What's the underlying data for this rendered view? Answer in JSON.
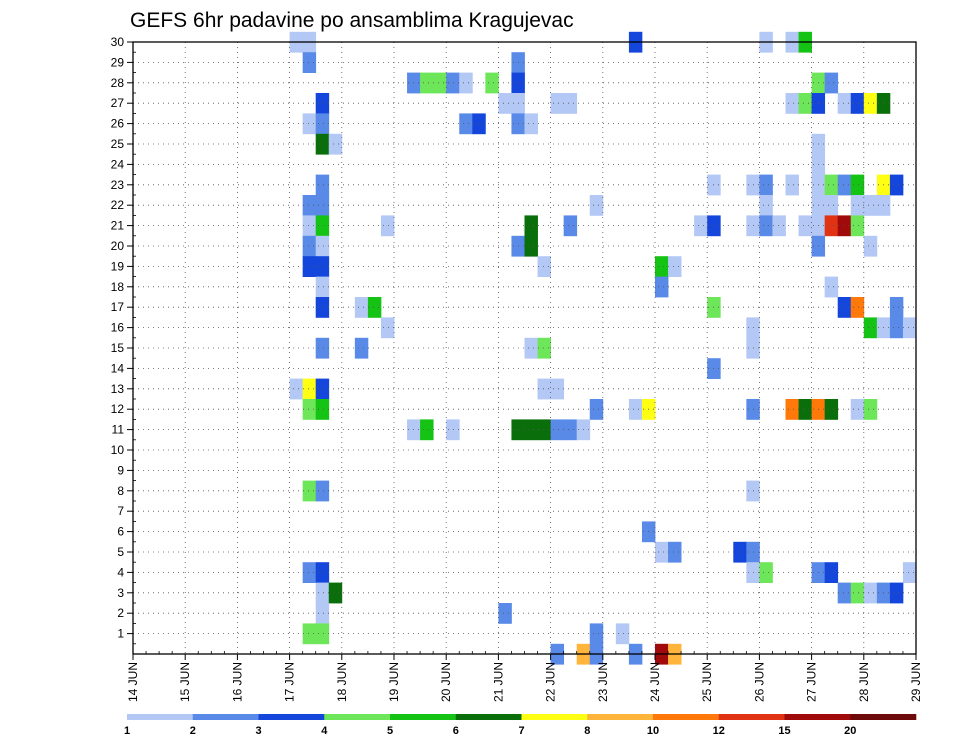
{
  "chart_data": {
    "type": "heatmap",
    "title": "GEFS 6hr padavine po ansamblima Kragujevac",
    "xlabel": "",
    "ylabel": "",
    "y_ticks": [
      "1",
      "2",
      "3",
      "4",
      "5",
      "6",
      "7",
      "8",
      "9",
      "10",
      "11",
      "12",
      "13",
      "14",
      "15",
      "16",
      "17",
      "18",
      "19",
      "20",
      "21",
      "22",
      "23",
      "24",
      "25",
      "26",
      "27",
      "28",
      "29",
      "30"
    ],
    "x_ticks": [
      "14 JUN",
      "15 JUN",
      "16 JUN",
      "17 JUN",
      "18 JUN",
      "19 JUN",
      "20 JUN",
      "21 JUN",
      "22 JUN",
      "23 JUN",
      "24 JUN",
      "25 JUN",
      "26 JUN",
      "27 JUN",
      "28 JUN",
      "29 JUN"
    ],
    "x_range_days": [
      14,
      29
    ],
    "y_range_members": [
      0,
      30
    ],
    "grid": true,
    "legend": {
      "placement": "bottom",
      "labels": [
        "1",
        "2",
        "3",
        "4",
        "5",
        "6",
        "7",
        "8",
        "10",
        "12",
        "15",
        "20"
      ],
      "colors": [
        "#b4c8f5",
        "#5a8ae8",
        "#1446dc",
        "#6ee65a",
        "#14c314",
        "#0a6e0a",
        "#ffff14",
        "#ffb43c",
        "#ff780a",
        "#e13214",
        "#a00a0a",
        "#6e0a0a"
      ]
    },
    "cells": [
      {
        "m": 30,
        "t": 17.0,
        "l": 1
      },
      {
        "m": 30,
        "t": 17.25,
        "l": 1
      },
      {
        "m": 30,
        "t": 23.5,
        "l": 3
      },
      {
        "m": 30,
        "t": 26.0,
        "l": 1
      },
      {
        "m": 30,
        "t": 26.5,
        "l": 1
      },
      {
        "m": 30,
        "t": 26.75,
        "l": 5
      },
      {
        "m": 29,
        "t": 17.25,
        "l": 2
      },
      {
        "m": 29,
        "t": 21.25,
        "l": 2
      },
      {
        "m": 28,
        "t": 19.25,
        "l": 2
      },
      {
        "m": 28,
        "t": 19.5,
        "l": 4
      },
      {
        "m": 28,
        "t": 19.75,
        "l": 4
      },
      {
        "m": 28,
        "t": 20.0,
        "l": 2
      },
      {
        "m": 28,
        "t": 20.25,
        "l": 1
      },
      {
        "m": 28,
        "t": 20.75,
        "l": 4
      },
      {
        "m": 28,
        "t": 21.25,
        "l": 3
      },
      {
        "m": 28,
        "t": 27.0,
        "l": 4
      },
      {
        "m": 28,
        "t": 27.25,
        "l": 2
      },
      {
        "m": 27,
        "t": 17.5,
        "l": 3
      },
      {
        "m": 27,
        "t": 21.0,
        "l": 1
      },
      {
        "m": 27,
        "t": 21.25,
        "l": 1
      },
      {
        "m": 27,
        "t": 22.0,
        "l": 1
      },
      {
        "m": 27,
        "t": 22.25,
        "l": 1
      },
      {
        "m": 27,
        "t": 26.5,
        "l": 1
      },
      {
        "m": 27,
        "t": 26.75,
        "l": 4
      },
      {
        "m": 27,
        "t": 27.0,
        "l": 3
      },
      {
        "m": 27,
        "t": 27.5,
        "l": 1
      },
      {
        "m": 27,
        "t": 27.75,
        "l": 3
      },
      {
        "m": 27,
        "t": 28.0,
        "l": 7
      },
      {
        "m": 27,
        "t": 28.25,
        "l": 6
      },
      {
        "m": 26,
        "t": 17.25,
        "l": 1
      },
      {
        "m": 26,
        "t": 17.5,
        "l": 2
      },
      {
        "m": 26,
        "t": 20.25,
        "l": 2
      },
      {
        "m": 26,
        "t": 20.5,
        "l": 3
      },
      {
        "m": 26,
        "t": 21.25,
        "l": 2
      },
      {
        "m": 26,
        "t": 21.5,
        "l": 1
      },
      {
        "m": 25,
        "t": 17.5,
        "l": 6
      },
      {
        "m": 25,
        "t": 17.75,
        "l": 1
      },
      {
        "m": 25,
        "t": 27.0,
        "l": 1
      },
      {
        "m": 24,
        "t": 27.0,
        "l": 1
      },
      {
        "m": 23,
        "t": 17.5,
        "l": 2
      },
      {
        "m": 23,
        "t": 25.0,
        "l": 1
      },
      {
        "m": 23,
        "t": 25.75,
        "l": 1
      },
      {
        "m": 23,
        "t": 26.0,
        "l": 2
      },
      {
        "m": 23,
        "t": 26.5,
        "l": 1
      },
      {
        "m": 23,
        "t": 27.0,
        "l": 1
      },
      {
        "m": 23,
        "t": 27.25,
        "l": 4
      },
      {
        "m": 23,
        "t": 27.5,
        "l": 2
      },
      {
        "m": 23,
        "t": 27.75,
        "l": 5
      },
      {
        "m": 23,
        "t": 28.25,
        "l": 7
      },
      {
        "m": 23,
        "t": 28.5,
        "l": 3
      },
      {
        "m": 22,
        "t": 17.25,
        "l": 2
      },
      {
        "m": 22,
        "t": 17.5,
        "l": 2
      },
      {
        "m": 22,
        "t": 22.75,
        "l": 1
      },
      {
        "m": 22,
        "t": 26.0,
        "l": 1
      },
      {
        "m": 22,
        "t": 27.0,
        "l": 1
      },
      {
        "m": 22,
        "t": 27.25,
        "l": 1
      },
      {
        "m": 22,
        "t": 27.75,
        "l": 1
      },
      {
        "m": 22,
        "t": 28.0,
        "l": 1
      },
      {
        "m": 22,
        "t": 28.25,
        "l": 1
      },
      {
        "m": 21,
        "t": 17.25,
        "l": 1
      },
      {
        "m": 21,
        "t": 17.5,
        "l": 5
      },
      {
        "m": 21,
        "t": 18.75,
        "l": 1
      },
      {
        "m": 21,
        "t": 21.5,
        "l": 6
      },
      {
        "m": 21,
        "t": 22.25,
        "l": 2
      },
      {
        "m": 21,
        "t": 24.75,
        "l": 1
      },
      {
        "m": 21,
        "t": 25.0,
        "l": 3
      },
      {
        "m": 21,
        "t": 25.75,
        "l": 1
      },
      {
        "m": 21,
        "t": 26.0,
        "l": 2
      },
      {
        "m": 21,
        "t": 26.25,
        "l": 1
      },
      {
        "m": 21,
        "t": 26.75,
        "l": 1
      },
      {
        "m": 21,
        "t": 27.0,
        "l": 1
      },
      {
        "m": 21,
        "t": 27.25,
        "l": 10
      },
      {
        "m": 21,
        "t": 27.5,
        "l": 11
      },
      {
        "m": 21,
        "t": 27.75,
        "l": 4
      },
      {
        "m": 20,
        "t": 17.25,
        "l": 2
      },
      {
        "m": 20,
        "t": 17.5,
        "l": 1
      },
      {
        "m": 20,
        "t": 21.25,
        "l": 2
      },
      {
        "m": 20,
        "t": 21.5,
        "l": 6
      },
      {
        "m": 20,
        "t": 27.0,
        "l": 2
      },
      {
        "m": 20,
        "t": 28.0,
        "l": 1
      },
      {
        "m": 19,
        "t": 17.25,
        "l": 3
      },
      {
        "m": 19,
        "t": 17.5,
        "l": 3
      },
      {
        "m": 19,
        "t": 21.75,
        "l": 1
      },
      {
        "m": 19,
        "t": 24.0,
        "l": 5
      },
      {
        "m": 19,
        "t": 24.25,
        "l": 1
      },
      {
        "m": 18,
        "t": 17.5,
        "l": 1
      },
      {
        "m": 18,
        "t": 24.0,
        "l": 2
      },
      {
        "m": 18,
        "t": 27.25,
        "l": 1
      },
      {
        "m": 17,
        "t": 17.5,
        "l": 3
      },
      {
        "m": 17,
        "t": 18.25,
        "l": 1
      },
      {
        "m": 17,
        "t": 18.5,
        "l": 5
      },
      {
        "m": 17,
        "t": 25.0,
        "l": 4
      },
      {
        "m": 17,
        "t": 27.5,
        "l": 3
      },
      {
        "m": 17,
        "t": 27.75,
        "l": 9
      },
      {
        "m": 17,
        "t": 28.5,
        "l": 2
      },
      {
        "m": 16,
        "t": 18.75,
        "l": 1
      },
      {
        "m": 16,
        "t": 25.75,
        "l": 1
      },
      {
        "m": 16,
        "t": 28.0,
        "l": 5
      },
      {
        "m": 16,
        "t": 28.25,
        "l": 1
      },
      {
        "m": 16,
        "t": 28.5,
        "l": 2
      },
      {
        "m": 16,
        "t": 28.75,
        "l": 1
      },
      {
        "m": 15,
        "t": 17.5,
        "l": 2
      },
      {
        "m": 15,
        "t": 18.25,
        "l": 2
      },
      {
        "m": 15,
        "t": 21.5,
        "l": 1
      },
      {
        "m": 15,
        "t": 21.75,
        "l": 4
      },
      {
        "m": 15,
        "t": 25.75,
        "l": 1
      },
      {
        "m": 14,
        "t": 25.0,
        "l": 2
      },
      {
        "m": 13,
        "t": 17.0,
        "l": 1
      },
      {
        "m": 13,
        "t": 17.25,
        "l": 7
      },
      {
        "m": 13,
        "t": 17.5,
        "l": 3
      },
      {
        "m": 13,
        "t": 21.75,
        "l": 1
      },
      {
        "m": 13,
        "t": 22.0,
        "l": 1
      },
      {
        "m": 12,
        "t": 17.25,
        "l": 4
      },
      {
        "m": 12,
        "t": 17.5,
        "l": 5
      },
      {
        "m": 12,
        "t": 22.75,
        "l": 2
      },
      {
        "m": 12,
        "t": 23.5,
        "l": 1
      },
      {
        "m": 12,
        "t": 23.75,
        "l": 7
      },
      {
        "m": 12,
        "t": 25.75,
        "l": 2
      },
      {
        "m": 12,
        "t": 26.5,
        "l": 9
      },
      {
        "m": 12,
        "t": 26.75,
        "l": 6
      },
      {
        "m": 12,
        "t": 27.0,
        "l": 9
      },
      {
        "m": 12,
        "t": 27.25,
        "l": 6
      },
      {
        "m": 12,
        "t": 27.75,
        "l": 1
      },
      {
        "m": 12,
        "t": 28.0,
        "l": 4
      },
      {
        "m": 11,
        "t": 19.25,
        "l": 1
      },
      {
        "m": 11,
        "t": 19.5,
        "l": 5
      },
      {
        "m": 11,
        "t": 20.0,
        "l": 1
      },
      {
        "m": 11,
        "t": 21.25,
        "l": 6
      },
      {
        "m": 11,
        "t": 21.5,
        "l": 6
      },
      {
        "m": 11,
        "t": 21.75,
        "l": 6
      },
      {
        "m": 11,
        "t": 22.0,
        "l": 2
      },
      {
        "m": 11,
        "t": 22.25,
        "l": 2
      },
      {
        "m": 11,
        "t": 22.5,
        "l": 1
      },
      {
        "m": 8,
        "t": 17.25,
        "l": 4
      },
      {
        "m": 8,
        "t": 17.5,
        "l": 2
      },
      {
        "m": 8,
        "t": 25.75,
        "l": 1
      },
      {
        "m": 6,
        "t": 23.75,
        "l": 2
      },
      {
        "m": 5,
        "t": 24.0,
        "l": 1
      },
      {
        "m": 5,
        "t": 24.25,
        "l": 2
      },
      {
        "m": 5,
        "t": 25.5,
        "l": 3
      },
      {
        "m": 5,
        "t": 25.75,
        "l": 2
      },
      {
        "m": 4,
        "t": 17.25,
        "l": 2
      },
      {
        "m": 4,
        "t": 17.5,
        "l": 3
      },
      {
        "m": 4,
        "t": 25.75,
        "l": 1
      },
      {
        "m": 4,
        "t": 26.0,
        "l": 4
      },
      {
        "m": 4,
        "t": 27.0,
        "l": 2
      },
      {
        "m": 4,
        "t": 27.25,
        "l": 3
      },
      {
        "m": 4,
        "t": 28.75,
        "l": 1
      },
      {
        "m": 3,
        "t": 17.5,
        "l": 1
      },
      {
        "m": 3,
        "t": 17.75,
        "l": 6
      },
      {
        "m": 3,
        "t": 27.5,
        "l": 2
      },
      {
        "m": 3,
        "t": 27.75,
        "l": 4
      },
      {
        "m": 3,
        "t": 28.0,
        "l": 1
      },
      {
        "m": 3,
        "t": 28.25,
        "l": 2
      },
      {
        "m": 3,
        "t": 28.5,
        "l": 3
      },
      {
        "m": 2,
        "t": 17.5,
        "l": 1
      },
      {
        "m": 2,
        "t": 21.0,
        "l": 2
      },
      {
        "m": 1,
        "t": 17.25,
        "l": 4
      },
      {
        "m": 1,
        "t": 17.5,
        "l": 4
      },
      {
        "m": 1,
        "t": 22.75,
        "l": 2
      },
      {
        "m": 1,
        "t": 23.25,
        "l": 1
      },
      {
        "m": 0,
        "t": 22.0,
        "l": 2
      },
      {
        "m": 0,
        "t": 22.5,
        "l": 8
      },
      {
        "m": 0,
        "t": 22.75,
        "l": 2
      },
      {
        "m": 0,
        "t": 23.5,
        "l": 2
      },
      {
        "m": 0,
        "t": 24.0,
        "l": 11
      },
      {
        "m": 0,
        "t": 24.25,
        "l": 8
      }
    ]
  }
}
